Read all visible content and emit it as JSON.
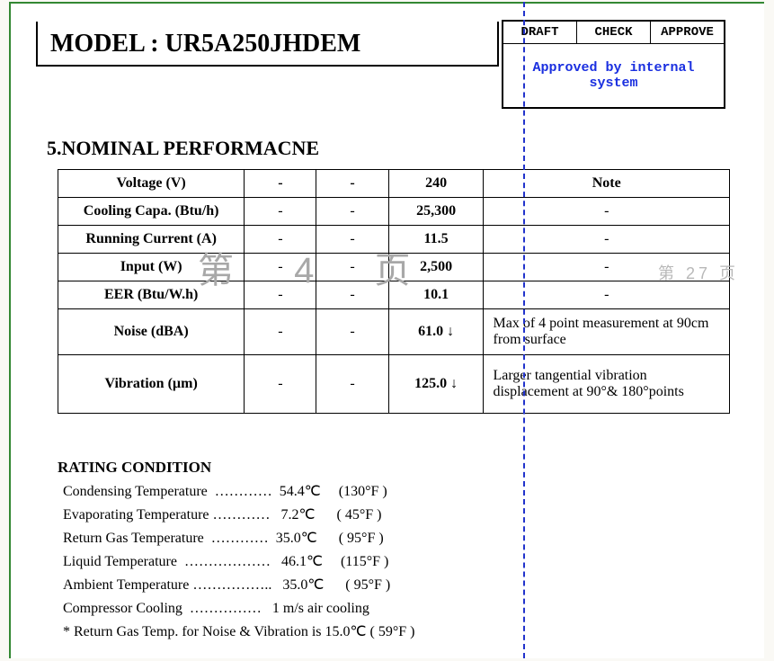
{
  "header": {
    "model_label": "MODEL : UR5A250JHDEM",
    "approval": {
      "col1": "DRAFT",
      "col2": "CHECK",
      "col3": "APPROVE",
      "status": "Approved by internal system"
    }
  },
  "section": {
    "title": "5.NOMINAL PERFORMACNE"
  },
  "perf_table": {
    "headers": {
      "param": "Voltage (V)",
      "c1": "-",
      "c2": "-",
      "val": "240",
      "note": "Note"
    },
    "rows": [
      {
        "param": "Cooling Capa. (Btu/h)",
        "c1": "-",
        "c2": "-",
        "val": "25,300",
        "note": "-"
      },
      {
        "param": "Running Current (A)",
        "c1": "-",
        "c2": "-",
        "val": "11.5",
        "note": "-"
      },
      {
        "param": "Input (W)",
        "c1": "-",
        "c2": "-",
        "val": "2,500",
        "note": "-"
      },
      {
        "param": "EER (Btu/W.h)",
        "c1": "-",
        "c2": "-",
        "val": "10.1",
        "note": "-"
      },
      {
        "param": "Noise (dBA)",
        "c1": "-",
        "c2": "-",
        "val": "61.0 ↓",
        "note": "Max of 4 point measurement at 90cm from surface"
      },
      {
        "param": "Vibration (µm)",
        "c1": "-",
        "c2": "-",
        "val": "125.0 ↓",
        "note": "Larger tangential vibration displacement at 90°& 180°points"
      }
    ]
  },
  "rating": {
    "title": "RATING CONDITION",
    "lines": [
      "Condensing Temperature  …………  54.4℃     (130°F )",
      "Evaporating Temperature …………   7.2℃      ( 45°F )",
      "Return Gas Temperature  …………  35.0℃      ( 95°F )",
      "Liquid Temperature  ………………   46.1℃     (115°F )",
      "Ambient Temperature ……………..   35.0℃      ( 95°F )",
      "Compressor Cooling  ……………   1 m/s air cooling",
      "* Return Gas Temp. for Noise & Vibration is 15.0℃ ( 59°F )"
    ]
  },
  "watermarks": {
    "left": "第 4 页",
    "right": "第 27 页"
  },
  "colors": {
    "page_border": "#338833",
    "fold_dash": "#2233cc",
    "approve_text": "#1a2fe0",
    "watermark": "#a8a8a8"
  }
}
